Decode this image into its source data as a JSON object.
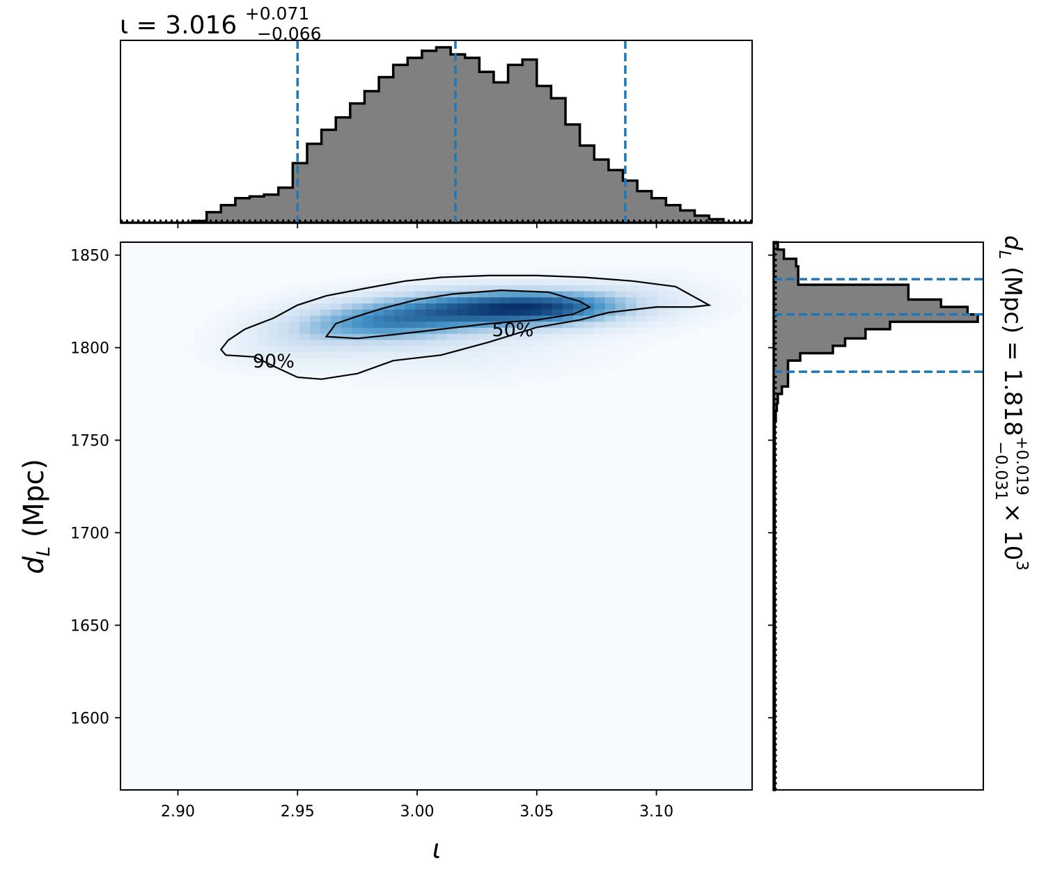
{
  "chart_data": {
    "type": "heatmap",
    "x_title": "ι",
    "y_title": "d",
    "y_title_subscript": "L",
    "y_title_units": "(Mpc)",
    "top_title": {
      "prefix": "ι = 3.016",
      "upper": "+0.071",
      "lower": "−0.066"
    },
    "right_title": {
      "prefix": "d",
      "subscript": "L",
      "middle": " (Mpc) = 1.818",
      "upper": "+0.019",
      "lower": "−0.031",
      "suffix": " × 10",
      "exponent": "3"
    },
    "xlim": [
      2.876,
      3.14
    ],
    "ylim": [
      1561,
      1857
    ],
    "x_ticks": [
      2.9,
      2.95,
      3.0,
      3.05,
      3.1
    ],
    "x_tick_labels": [
      "2.90",
      "2.95",
      "3.00",
      "3.05",
      "3.10"
    ],
    "y_ticks": [
      1850,
      1800,
      1750,
      1700,
      1650,
      1600
    ],
    "y_tick_labels": [
      "1850",
      "1800",
      "1750",
      "1700",
      "1650",
      "1600"
    ],
    "iota_marginal": {
      "credible_lines": [
        2.95,
        3.016,
        3.087
      ],
      "bin_edges": [
        2.876,
        2.882,
        2.888,
        2.894,
        2.9,
        2.906,
        2.912,
        2.918,
        2.924,
        2.93,
        2.936,
        2.942,
        2.948,
        2.954,
        2.96,
        2.966,
        2.972,
        2.978,
        2.984,
        2.99,
        2.996,
        3.002,
        3.008,
        3.014,
        3.02,
        3.026,
        3.032,
        3.038,
        3.044,
        3.05,
        3.056,
        3.062,
        3.068,
        3.074,
        3.08,
        3.086,
        3.092,
        3.098,
        3.104,
        3.11,
        3.116,
        3.122,
        3.128,
        3.134,
        3.14
      ],
      "counts": [
        0,
        0,
        0,
        0,
        0,
        0.01,
        0.06,
        0.1,
        0.14,
        0.15,
        0.16,
        0.2,
        0.34,
        0.45,
        0.53,
        0.6,
        0.68,
        0.75,
        0.83,
        0.9,
        0.94,
        0.98,
        1.0,
        0.96,
        0.94,
        0.86,
        0.8,
        0.9,
        0.93,
        0.78,
        0.71,
        0.56,
        0.44,
        0.36,
        0.3,
        0.24,
        0.18,
        0.14,
        0.1,
        0.07,
        0.04,
        0.02,
        0.0,
        0.0
      ]
    },
    "dL_marginal": {
      "credible_lines": [
        1837,
        1818,
        1787
      ],
      "bin_edges": [
        1857,
        1853,
        1848,
        1844,
        1839,
        1834,
        1826,
        1822,
        1818,
        1814,
        1810,
        1805,
        1801,
        1797,
        1793,
        1788,
        1784,
        1779,
        1775,
        1770,
        1766,
        1760,
        1561
      ],
      "counts": [
        0.02,
        0.05,
        0.11,
        0.12,
        0.12,
        0.66,
        0.82,
        0.95,
        1.0,
        0.57,
        0.45,
        0.35,
        0.29,
        0.13,
        0.07,
        0.07,
        0.07,
        0.04,
        0.02,
        0.015,
        0.01,
        0.005
      ]
    },
    "density_blobs": [
      {
        "x": 3.03,
        "y": 1821,
        "sx": 0.032,
        "sy": 7,
        "w": 1.0
      },
      {
        "x": 2.985,
        "y": 1813,
        "sx": 0.022,
        "sy": 7,
        "w": 0.55
      },
      {
        "x": 3.06,
        "y": 1823,
        "sx": 0.022,
        "sy": 6,
        "w": 0.45
      },
      {
        "x": 2.955,
        "y": 1808,
        "sx": 0.018,
        "sy": 8,
        "w": 0.2
      },
      {
        "x": 3.01,
        "y": 1803,
        "sx": 0.04,
        "sy": 12,
        "w": 0.12
      },
      {
        "x": 3.095,
        "y": 1828,
        "sx": 0.02,
        "sy": 8,
        "w": 0.1
      },
      {
        "x": 2.935,
        "y": 1797,
        "sx": 0.015,
        "sy": 6,
        "w": 0.06
      }
    ],
    "contours": [
      {
        "label": "90%",
        "label_at": [
          2.94,
          1793
        ],
        "points": [
          [
            2.932,
            1795
          ],
          [
            2.92,
            1796
          ],
          [
            2.918,
            1799
          ],
          [
            2.921,
            1804
          ],
          [
            2.928,
            1810
          ],
          [
            2.94,
            1816
          ],
          [
            2.95,
            1823
          ],
          [
            2.962,
            1828
          ],
          [
            2.978,
            1832
          ],
          [
            2.995,
            1836
          ],
          [
            3.01,
            1838
          ],
          [
            3.03,
            1839
          ],
          [
            3.05,
            1839
          ],
          [
            3.07,
            1838
          ],
          [
            3.09,
            1836
          ],
          [
            3.108,
            1833
          ],
          [
            3.122,
            1823
          ],
          [
            3.115,
            1822
          ],
          [
            3.1,
            1822
          ],
          [
            3.08,
            1819
          ],
          [
            3.068,
            1815
          ],
          [
            3.05,
            1811
          ],
          [
            3.03,
            1803
          ],
          [
            3.01,
            1796
          ],
          [
            2.99,
            1793
          ],
          [
            2.975,
            1786
          ],
          [
            2.96,
            1783
          ],
          [
            2.95,
            1784
          ],
          [
            2.94,
            1790
          ],
          [
            2.932,
            1795
          ]
        ]
      },
      {
        "label": "50%",
        "label_at": [
          3.04,
          1810
        ],
        "points": [
          [
            2.962,
            1806
          ],
          [
            2.966,
            1813
          ],
          [
            2.975,
            1817
          ],
          [
            2.985,
            1821
          ],
          [
            3.0,
            1826
          ],
          [
            3.015,
            1829
          ],
          [
            3.035,
            1831
          ],
          [
            3.055,
            1830
          ],
          [
            3.068,
            1825
          ],
          [
            3.072,
            1822
          ],
          [
            3.065,
            1818
          ],
          [
            3.05,
            1815
          ],
          [
            3.03,
            1813
          ],
          [
            3.01,
            1810
          ],
          [
            2.99,
            1807
          ],
          [
            2.975,
            1805
          ],
          [
            2.962,
            1806
          ]
        ]
      }
    ],
    "colors": {
      "marginal_fill": "#808080",
      "marginal_edge": "#000000",
      "credible_line": "#1f77b4",
      "cmap_low": "#f7fbff",
      "cmap_high": "#08306b"
    }
  }
}
